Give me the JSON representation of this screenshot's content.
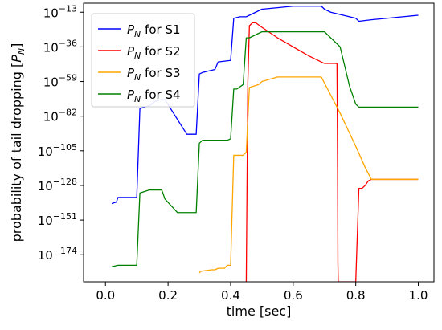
{
  "chart_data": {
    "type": "line",
    "xlabel": "time [sec]",
    "ylabel": "probability of tail dropping [P_N]",
    "xlim": [
      -0.07,
      1.05
    ],
    "ylim_log10": [
      -192,
      -7
    ],
    "y_scale": "log",
    "grid": false,
    "legend_placement": "top-left",
    "x_ticks": [
      0.0,
      0.2,
      0.4,
      0.6,
      0.8,
      1.0
    ],
    "x_tick_labels": [
      "0.0",
      "0.2",
      "0.4",
      "0.6",
      "0.8",
      "1.0"
    ],
    "y_ticks_log10": [
      -13,
      -36,
      -59,
      -82,
      -105,
      -128,
      -151,
      -174
    ],
    "y_tick_labels": [
      "10−13",
      "10−36",
      "10−59",
      "10−82",
      "10−105",
      "10−128",
      "10−151",
      "10−174"
    ],
    "series": [
      {
        "name": "P_N for S1",
        "color": "#0000ff",
        "x": [
          0.02,
          0.035,
          0.04,
          0.1,
          0.11,
          0.14,
          0.16,
          0.18,
          0.19,
          0.26,
          0.29,
          0.3,
          0.31,
          0.33,
          0.35,
          0.36,
          0.4,
          0.41,
          0.43,
          0.45,
          0.47,
          0.5,
          0.55,
          0.6,
          0.65,
          0.69,
          0.7,
          0.72,
          0.8,
          0.81,
          0.85,
          0.9,
          0.95,
          1.0
        ],
        "y": [
          -140,
          -139,
          -136,
          -136,
          -77,
          -75,
          -72,
          -71,
          -71,
          -94,
          -94,
          -54,
          -53,
          -52,
          -51,
          -46,
          -45,
          -17,
          -16,
          -16,
          -14,
          -11,
          -10,
          -9,
          -9,
          -9,
          -11,
          -13,
          -17,
          -19,
          -18,
          -17,
          -16,
          -15
        ]
      },
      {
        "name": "P_N for S2",
        "color": "#ff0000",
        "x": [
          0.45,
          0.455,
          0.46,
          0.47,
          0.48,
          0.5,
          0.55,
          0.6,
          0.65,
          0.7,
          0.74,
          0.742,
          0.743,
          0.744,
          0.745,
          0.8,
          0.81,
          0.815,
          0.82,
          0.83,
          0.84,
          0.85,
          1.0
        ],
        "y": [
          -192,
          -60,
          -22,
          -20,
          -20,
          -23,
          -30,
          -36,
          -42,
          -47,
          -47,
          -120,
          -180,
          -192,
          -192,
          -192,
          -130,
          -130,
          -130,
          -128,
          -125,
          -124,
          -124
        ]
      },
      {
        "name": "P_N for S3",
        "color": "#ffa500",
        "x": [
          0.3,
          0.305,
          0.34,
          0.35,
          0.36,
          0.38,
          0.39,
          0.4,
          0.41,
          0.42,
          0.44,
          0.45,
          0.46,
          0.49,
          0.5,
          0.55,
          0.6,
          0.65,
          0.69,
          0.75,
          0.8,
          0.83,
          0.85,
          1.0
        ],
        "y": [
          -186,
          -185,
          -184,
          -184,
          -183,
          -183,
          -181,
          -181,
          -108,
          -108,
          -108,
          -106,
          -63,
          -61,
          -59,
          -56,
          -56,
          -56,
          -56,
          -80,
          -102,
          -116,
          -124,
          -124
        ]
      },
      {
        "name": "P_N for S4",
        "color": "#008000",
        "x": [
          0.02,
          0.04,
          0.1,
          0.11,
          0.14,
          0.16,
          0.18,
          0.19,
          0.23,
          0.29,
          0.3,
          0.31,
          0.33,
          0.39,
          0.4,
          0.41,
          0.42,
          0.44,
          0.45,
          0.46,
          0.47,
          0.5,
          0.6,
          0.7,
          0.75,
          0.78,
          0.8,
          0.81,
          1.0
        ],
        "y": [
          -182,
          -181,
          -181,
          -133,
          -131,
          -131,
          -131,
          -137,
          -146,
          -146,
          -100,
          -98,
          -98,
          -98,
          -97,
          -64,
          -64,
          -61,
          -30,
          -30,
          -29,
          -26,
          -26,
          -26,
          -36,
          -62,
          -74,
          -76,
          -76
        ]
      }
    ],
    "legend": [
      "P_N for S1",
      "P_N for S2",
      "P_N for S3",
      "P_N for S4"
    ]
  }
}
